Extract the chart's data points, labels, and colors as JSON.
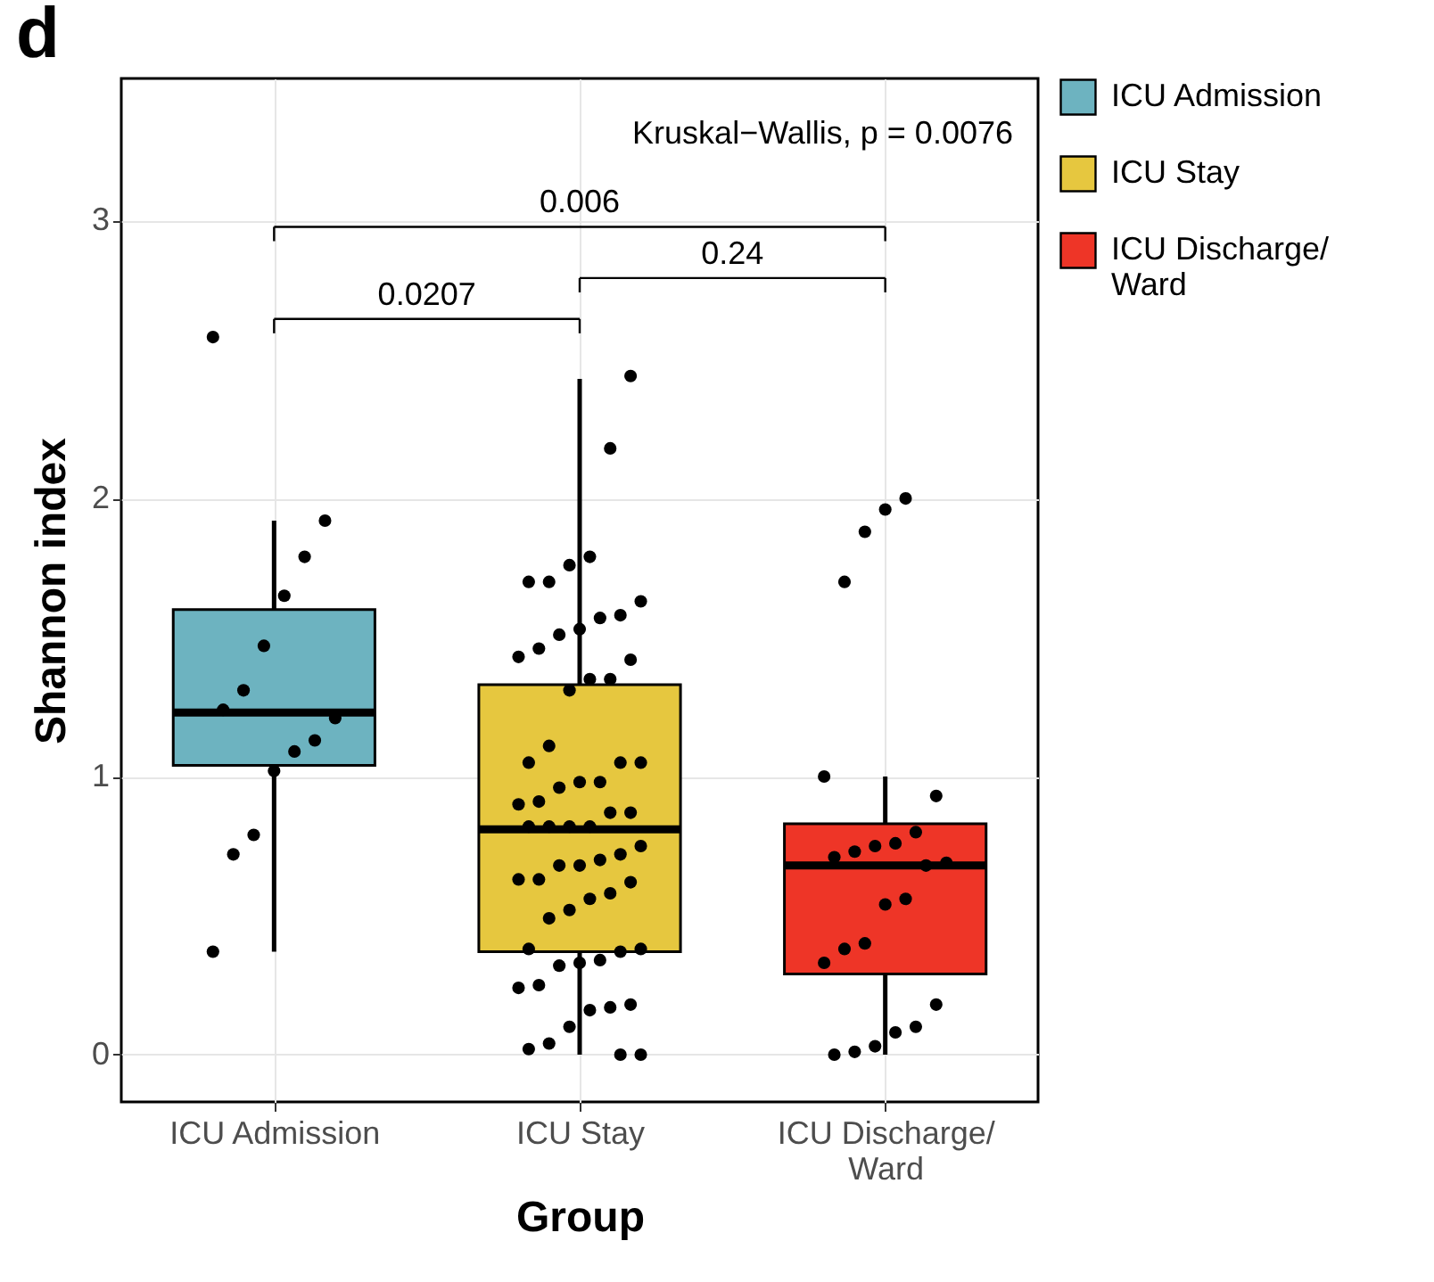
{
  "chart_data": {
    "type": "box",
    "title": "d",
    "xlabel": "Group",
    "ylabel": "Shannon index",
    "annotations": [
      "Kruskal−Wallis, p = 0.0076",
      "0.0207",
      "0.24",
      "0.006"
    ],
    "categories": [
      "ICU Admission",
      "ICU Stay",
      "ICU Discharge/ Ward"
    ],
    "series": [
      {
        "type": "box",
        "name": "ICU Admission",
        "color": "#6db3c0",
        "boxes": [
          {
            "low": 0.37,
            "q1": 1.04,
            "median": 1.23,
            "q3": 1.6,
            "high": 1.92
          },
          null,
          null
        ]
      },
      {
        "type": "box",
        "name": "ICU Stay",
        "color": "#e6c73f",
        "boxes": [
          null,
          {
            "low": 0.0,
            "q1": 0.37,
            "median": 0.81,
            "q3": 1.33,
            "high": 2.43
          },
          null
        ]
      },
      {
        "type": "box",
        "name": "ICU Discharge/ Ward",
        "color": "#ee3527",
        "boxes": [
          null,
          null,
          {
            "low": 0.0,
            "q1": 0.29,
            "median": 0.68,
            "q3": 0.83,
            "high": 1.0
          }
        ]
      },
      {
        "type": "scatter",
        "color": "#000000",
        "x": [
          "ICU Admission",
          "ICU Admission",
          "ICU Admission",
          "ICU Admission",
          "ICU Admission",
          "ICU Admission",
          "ICU Admission",
          "ICU Admission",
          "ICU Admission",
          "ICU Admission",
          "ICU Admission",
          "ICU Admission",
          "ICU Admission",
          "ICU Admission",
          "ICU Stay",
          "ICU Stay",
          "ICU Stay",
          "ICU Stay",
          "ICU Stay",
          "ICU Stay",
          "ICU Stay",
          "ICU Stay",
          "ICU Stay",
          "ICU Stay",
          "ICU Stay",
          "ICU Stay",
          "ICU Stay",
          "ICU Stay",
          "ICU Stay",
          "ICU Stay",
          "ICU Stay",
          "ICU Stay",
          "ICU Stay",
          "ICU Stay",
          "ICU Stay",
          "ICU Stay",
          "ICU Stay",
          "ICU Stay",
          "ICU Stay",
          "ICU Stay",
          "ICU Stay",
          "ICU Stay",
          "ICU Stay",
          "ICU Stay",
          "ICU Stay",
          "ICU Stay",
          "ICU Stay",
          "ICU Stay",
          "ICU Stay",
          "ICU Stay",
          "ICU Stay",
          "ICU Stay",
          "ICU Stay",
          "ICU Stay",
          "ICU Stay",
          "ICU Stay",
          "ICU Stay",
          "ICU Stay",
          "ICU Stay",
          "ICU Stay",
          "ICU Stay",
          "ICU Stay",
          "ICU Stay",
          "ICU Stay",
          "ICU Stay",
          "ICU Stay",
          "ICU Stay",
          "ICU Stay",
          "ICU Stay",
          "ICU Stay",
          "ICU Stay",
          "ICU Stay",
          "ICU Stay",
          "ICU Stay",
          "ICU Discharge/ Ward",
          "ICU Discharge/ Ward",
          "ICU Discharge/ Ward",
          "ICU Discharge/ Ward",
          "ICU Discharge/ Ward",
          "ICU Discharge/ Ward",
          "ICU Discharge/ Ward",
          "ICU Discharge/ Ward",
          "ICU Discharge/ Ward",
          "ICU Discharge/ Ward",
          "ICU Discharge/ Ward",
          "ICU Discharge/ Ward",
          "ICU Discharge/ Ward",
          "ICU Discharge/ Ward",
          "ICU Discharge/ Ward",
          "ICU Discharge/ Ward",
          "ICU Discharge/ Ward",
          "ICU Discharge/ Ward",
          "ICU Discharge/ Ward",
          "ICU Discharge/ Ward",
          "ICU Discharge/ Ward",
          "ICU Discharge/ Ward",
          "ICU Discharge/ Ward",
          "ICU Discharge/ Ward"
        ],
        "values": [
          2.58,
          1.92,
          1.79,
          1.65,
          1.47,
          1.31,
          1.24,
          1.21,
          1.13,
          1.09,
          1.02,
          0.79,
          0.72,
          0.37,
          2.44,
          2.18,
          1.79,
          1.76,
          1.7,
          1.7,
          1.63,
          1.58,
          1.57,
          1.53,
          1.51,
          1.46,
          1.43,
          1.42,
          1.35,
          1.35,
          1.31,
          1.11,
          1.05,
          1.05,
          1.05,
          0.98,
          0.98,
          0.96,
          0.91,
          0.9,
          0.87,
          0.87,
          0.82,
          0.82,
          0.82,
          0.82,
          0.75,
          0.72,
          0.7,
          0.68,
          0.68,
          0.63,
          0.63,
          0.62,
          0.58,
          0.56,
          0.52,
          0.49,
          0.38,
          0.38,
          0.37,
          0.34,
          0.33,
          0.32,
          0.25,
          0.24,
          0.18,
          0.17,
          0.16,
          0.1,
          0.04,
          0.02,
          0.0,
          0.0,
          2.0,
          1.96,
          1.88,
          1.7,
          1.0,
          0.93,
          0.8,
          0.76,
          0.75,
          0.73,
          0.71,
          0.69,
          0.68,
          0.56,
          0.54,
          0.4,
          0.38,
          0.33,
          0.18,
          0.1,
          0.08,
          0.03,
          0.01,
          0.0
        ]
      }
    ],
    "ylim": [
      -0.17,
      3.51
    ],
    "yticks": [
      0,
      1,
      2,
      3
    ],
    "grid": true,
    "legend": "right"
  }
}
